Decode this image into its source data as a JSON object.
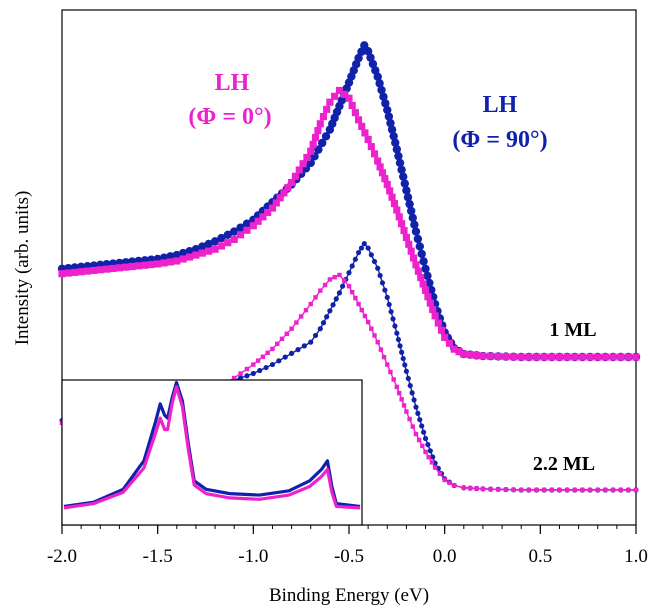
{
  "chart_data": {
    "type": "line",
    "xlabel": "Binding Energy (eV)",
    "ylabel": "Intensity (arb. units)",
    "xlim": [
      -2.0,
      1.0
    ],
    "x_ticks": [
      "-2.0",
      "-1.5",
      "-1.0",
      "-0.5",
      "0.0",
      "0.5",
      "1.0"
    ],
    "grid": false,
    "colors": {
      "LH_phi0": "#ee22cc",
      "LH_phi90": "#1122aa",
      "axis": "#000000"
    },
    "annotations": {
      "phi0_line1": "LH",
      "phi0_line2": "(Φ = 0°)",
      "phi90_line1": "LH",
      "phi90_line2": "(Φ = 90°)",
      "ml1": "1 ML",
      "ml22": "2.2 ML"
    },
    "spectra": [
      {
        "label": "1 ML",
        "series": [
          {
            "color": "#1122aa",
            "marker": "circle",
            "points": [
              [
                -2.0,
                0.9
              ],
              [
                -1.9,
                0.92
              ],
              [
                -1.8,
                0.94
              ],
              [
                -1.7,
                0.96
              ],
              [
                -1.6,
                0.98
              ],
              [
                -1.5,
                1.0
              ],
              [
                -1.4,
                1.04
              ],
              [
                -1.3,
                1.1
              ],
              [
                -1.2,
                1.18
              ],
              [
                -1.1,
                1.28
              ],
              [
                -1.0,
                1.4
              ],
              [
                -0.9,
                1.58
              ],
              [
                -0.8,
                1.76
              ],
              [
                -0.7,
                1.98
              ],
              [
                -0.6,
                2.32
              ],
              [
                -0.55,
                2.56
              ],
              [
                -0.5,
                2.8
              ],
              [
                -0.45,
                3.05
              ],
              [
                -0.42,
                3.18
              ],
              [
                -0.4,
                3.12
              ],
              [
                -0.35,
                2.86
              ],
              [
                -0.3,
                2.52
              ],
              [
                -0.25,
                2.12
              ],
              [
                -0.2,
                1.7
              ],
              [
                -0.15,
                1.28
              ],
              [
                -0.1,
                0.9
              ],
              [
                -0.05,
                0.54
              ],
              [
                0.0,
                0.25
              ],
              [
                0.05,
                0.09
              ],
              [
                0.1,
                0.03
              ],
              [
                0.2,
                0.01
              ],
              [
                0.4,
                0.0
              ],
              [
                0.6,
                0.0
              ],
              [
                0.8,
                0.0
              ],
              [
                1.0,
                0.0
              ]
            ]
          },
          {
            "color": "#ee22cc",
            "marker": "square",
            "points": [
              [
                -2.0,
                0.85
              ],
              [
                -1.9,
                0.87
              ],
              [
                -1.8,
                0.89
              ],
              [
                -1.7,
                0.91
              ],
              [
                -1.6,
                0.93
              ],
              [
                -1.5,
                0.95
              ],
              [
                -1.4,
                0.98
              ],
              [
                -1.3,
                1.04
              ],
              [
                -1.2,
                1.1
              ],
              [
                -1.1,
                1.2
              ],
              [
                -1.0,
                1.34
              ],
              [
                -0.9,
                1.52
              ],
              [
                -0.8,
                1.78
              ],
              [
                -0.7,
                2.1
              ],
              [
                -0.65,
                2.38
              ],
              [
                -0.6,
                2.6
              ],
              [
                -0.55,
                2.72
              ],
              [
                -0.5,
                2.64
              ],
              [
                -0.45,
                2.42
              ],
              [
                -0.4,
                2.22
              ],
              [
                -0.35,
                2.0
              ],
              [
                -0.3,
                1.76
              ],
              [
                -0.25,
                1.5
              ],
              [
                -0.2,
                1.22
              ],
              [
                -0.15,
                0.94
              ],
              [
                -0.1,
                0.68
              ],
              [
                -0.05,
                0.42
              ],
              [
                0.0,
                0.2
              ],
              [
                0.05,
                0.08
              ],
              [
                0.1,
                0.03
              ],
              [
                0.2,
                0.01
              ],
              [
                0.4,
                0.0
              ],
              [
                0.6,
                0.0
              ],
              [
                0.8,
                0.0
              ],
              [
                1.0,
                0.0
              ]
            ]
          }
        ]
      },
      {
        "label": "2.2 ML",
        "series": [
          {
            "color": "#1122aa",
            "marker": "dot",
            "points": [
              [
                -2.0,
                0.62
              ],
              [
                -1.9,
                0.64
              ],
              [
                -1.8,
                0.66
              ],
              [
                -1.7,
                0.68
              ],
              [
                -1.6,
                0.7
              ],
              [
                -1.5,
                0.74
              ],
              [
                -1.4,
                0.78
              ],
              [
                -1.3,
                0.84
              ],
              [
                -1.2,
                0.9
              ],
              [
                -1.1,
                0.98
              ],
              [
                -1.0,
                1.04
              ],
              [
                -0.9,
                1.12
              ],
              [
                -0.8,
                1.22
              ],
              [
                -0.7,
                1.32
              ],
              [
                -0.65,
                1.44
              ],
              [
                -0.6,
                1.6
              ],
              [
                -0.55,
                1.76
              ],
              [
                -0.5,
                1.94
              ],
              [
                -0.45,
                2.12
              ],
              [
                -0.42,
                2.2
              ],
              [
                -0.4,
                2.16
              ],
              [
                -0.35,
                1.98
              ],
              [
                -0.3,
                1.72
              ],
              [
                -0.25,
                1.4
              ],
              [
                -0.2,
                1.06
              ],
              [
                -0.15,
                0.74
              ],
              [
                -0.1,
                0.46
              ],
              [
                -0.05,
                0.24
              ],
              [
                0.0,
                0.1
              ],
              [
                0.05,
                0.04
              ],
              [
                0.1,
                0.02
              ],
              [
                0.2,
                0.01
              ],
              [
                0.4,
                0.0
              ],
              [
                0.6,
                0.0
              ],
              [
                0.8,
                0.0
              ],
              [
                1.0,
                0.0
              ]
            ]
          },
          {
            "color": "#ee22cc",
            "marker": "square-small",
            "points": [
              [
                -2.0,
                0.6
              ],
              [
                -1.9,
                0.62
              ],
              [
                -1.8,
                0.64
              ],
              [
                -1.7,
                0.66
              ],
              [
                -1.6,
                0.69
              ],
              [
                -1.5,
                0.72
              ],
              [
                -1.4,
                0.76
              ],
              [
                -1.3,
                0.82
              ],
              [
                -1.2,
                0.9
              ],
              [
                -1.1,
                1.0
              ],
              [
                -1.0,
                1.12
              ],
              [
                -0.9,
                1.26
              ],
              [
                -0.8,
                1.44
              ],
              [
                -0.7,
                1.66
              ],
              [
                -0.65,
                1.78
              ],
              [
                -0.6,
                1.88
              ],
              [
                -0.55,
                1.92
              ],
              [
                -0.5,
                1.82
              ],
              [
                -0.45,
                1.66
              ],
              [
                -0.4,
                1.5
              ],
              [
                -0.35,
                1.32
              ],
              [
                -0.3,
                1.12
              ],
              [
                -0.25,
                0.92
              ],
              [
                -0.2,
                0.7
              ],
              [
                -0.15,
                0.5
              ],
              [
                -0.1,
                0.34
              ],
              [
                -0.05,
                0.2
              ],
              [
                0.0,
                0.09
              ],
              [
                0.05,
                0.04
              ],
              [
                0.1,
                0.02
              ],
              [
                0.2,
                0.01
              ],
              [
                0.4,
                0.0
              ],
              [
                0.6,
                0.0
              ],
              [
                0.8,
                0.0
              ],
              [
                1.0,
                0.0
              ]
            ]
          }
        ]
      }
    ],
    "inset": {
      "description_series": [
        {
          "color": "#1122aa",
          "points": [
            [
              0.0,
              0.06
            ],
            [
              0.1,
              0.09
            ],
            [
              0.2,
              0.18
            ],
            [
              0.27,
              0.38
            ],
            [
              0.31,
              0.66
            ],
            [
              0.325,
              0.78
            ],
            [
              0.34,
              0.7
            ],
            [
              0.35,
              0.68
            ],
            [
              0.365,
              0.82
            ],
            [
              0.38,
              0.93
            ],
            [
              0.4,
              0.8
            ],
            [
              0.42,
              0.5
            ],
            [
              0.44,
              0.24
            ],
            [
              0.48,
              0.18
            ],
            [
              0.56,
              0.15
            ],
            [
              0.66,
              0.14
            ],
            [
              0.76,
              0.17
            ],
            [
              0.83,
              0.24
            ],
            [
              0.87,
              0.32
            ],
            [
              0.89,
              0.38
            ],
            [
              0.905,
              0.2
            ],
            [
              0.92,
              0.08
            ],
            [
              1.0,
              0.06
            ]
          ]
        },
        {
          "color": "#ee22cc",
          "points": [
            [
              0.0,
              0.05
            ],
            [
              0.1,
              0.08
            ],
            [
              0.2,
              0.16
            ],
            [
              0.27,
              0.33
            ],
            [
              0.31,
              0.58
            ],
            [
              0.325,
              0.68
            ],
            [
              0.34,
              0.6
            ],
            [
              0.35,
              0.6
            ],
            [
              0.365,
              0.78
            ],
            [
              0.38,
              0.9
            ],
            [
              0.4,
              0.76
            ],
            [
              0.42,
              0.46
            ],
            [
              0.44,
              0.21
            ],
            [
              0.48,
              0.15
            ],
            [
              0.56,
              0.12
            ],
            [
              0.66,
              0.11
            ],
            [
              0.76,
              0.14
            ],
            [
              0.83,
              0.2
            ],
            [
              0.87,
              0.27
            ],
            [
              0.89,
              0.32
            ],
            [
              0.905,
              0.16
            ],
            [
              0.92,
              0.06
            ],
            [
              1.0,
              0.05
            ]
          ]
        }
      ]
    }
  }
}
